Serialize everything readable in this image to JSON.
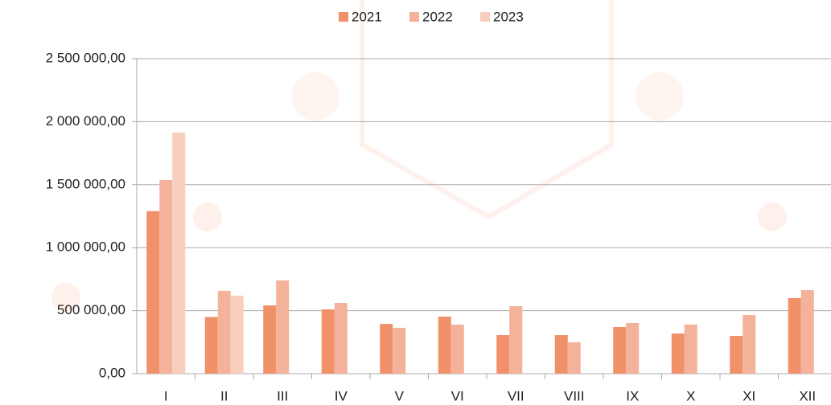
{
  "chart_data": {
    "type": "bar",
    "categories": [
      "I",
      "II",
      "III",
      "IV",
      "V",
      "VI",
      "VII",
      "VIII",
      "IX",
      "X",
      "XI",
      "XII"
    ],
    "series": [
      {
        "name": "2021",
        "color": "#f0916a",
        "values": [
          1290000,
          450000,
          542000,
          510000,
          395000,
          453000,
          306000,
          306000,
          370000,
          319000,
          300000,
          600000
        ]
      },
      {
        "name": "2022",
        "color": "#f4b29b",
        "values": [
          1537000,
          657000,
          740000,
          561000,
          364000,
          389000,
          536000,
          249000,
          402000,
          390000,
          466000,
          663000
        ]
      },
      {
        "name": "2023",
        "color": "#f8cfbf",
        "values": [
          1913000,
          619000,
          null,
          null,
          null,
          null,
          null,
          null,
          null,
          null,
          null,
          null
        ]
      }
    ],
    "ylim": [
      0,
      2500000
    ],
    "yticks": [
      {
        "value": 0,
        "label": "0,00"
      },
      {
        "value": 500000,
        "label": "500 000,00"
      },
      {
        "value": 1000000,
        "label": "1 000 000,00"
      },
      {
        "value": 1500000,
        "label": "1 500 000,00"
      },
      {
        "value": 2000000,
        "label": "2 000 000,00"
      },
      {
        "value": 2500000,
        "label": "2 500 000,00"
      }
    ],
    "grid": true,
    "legend": "top"
  }
}
